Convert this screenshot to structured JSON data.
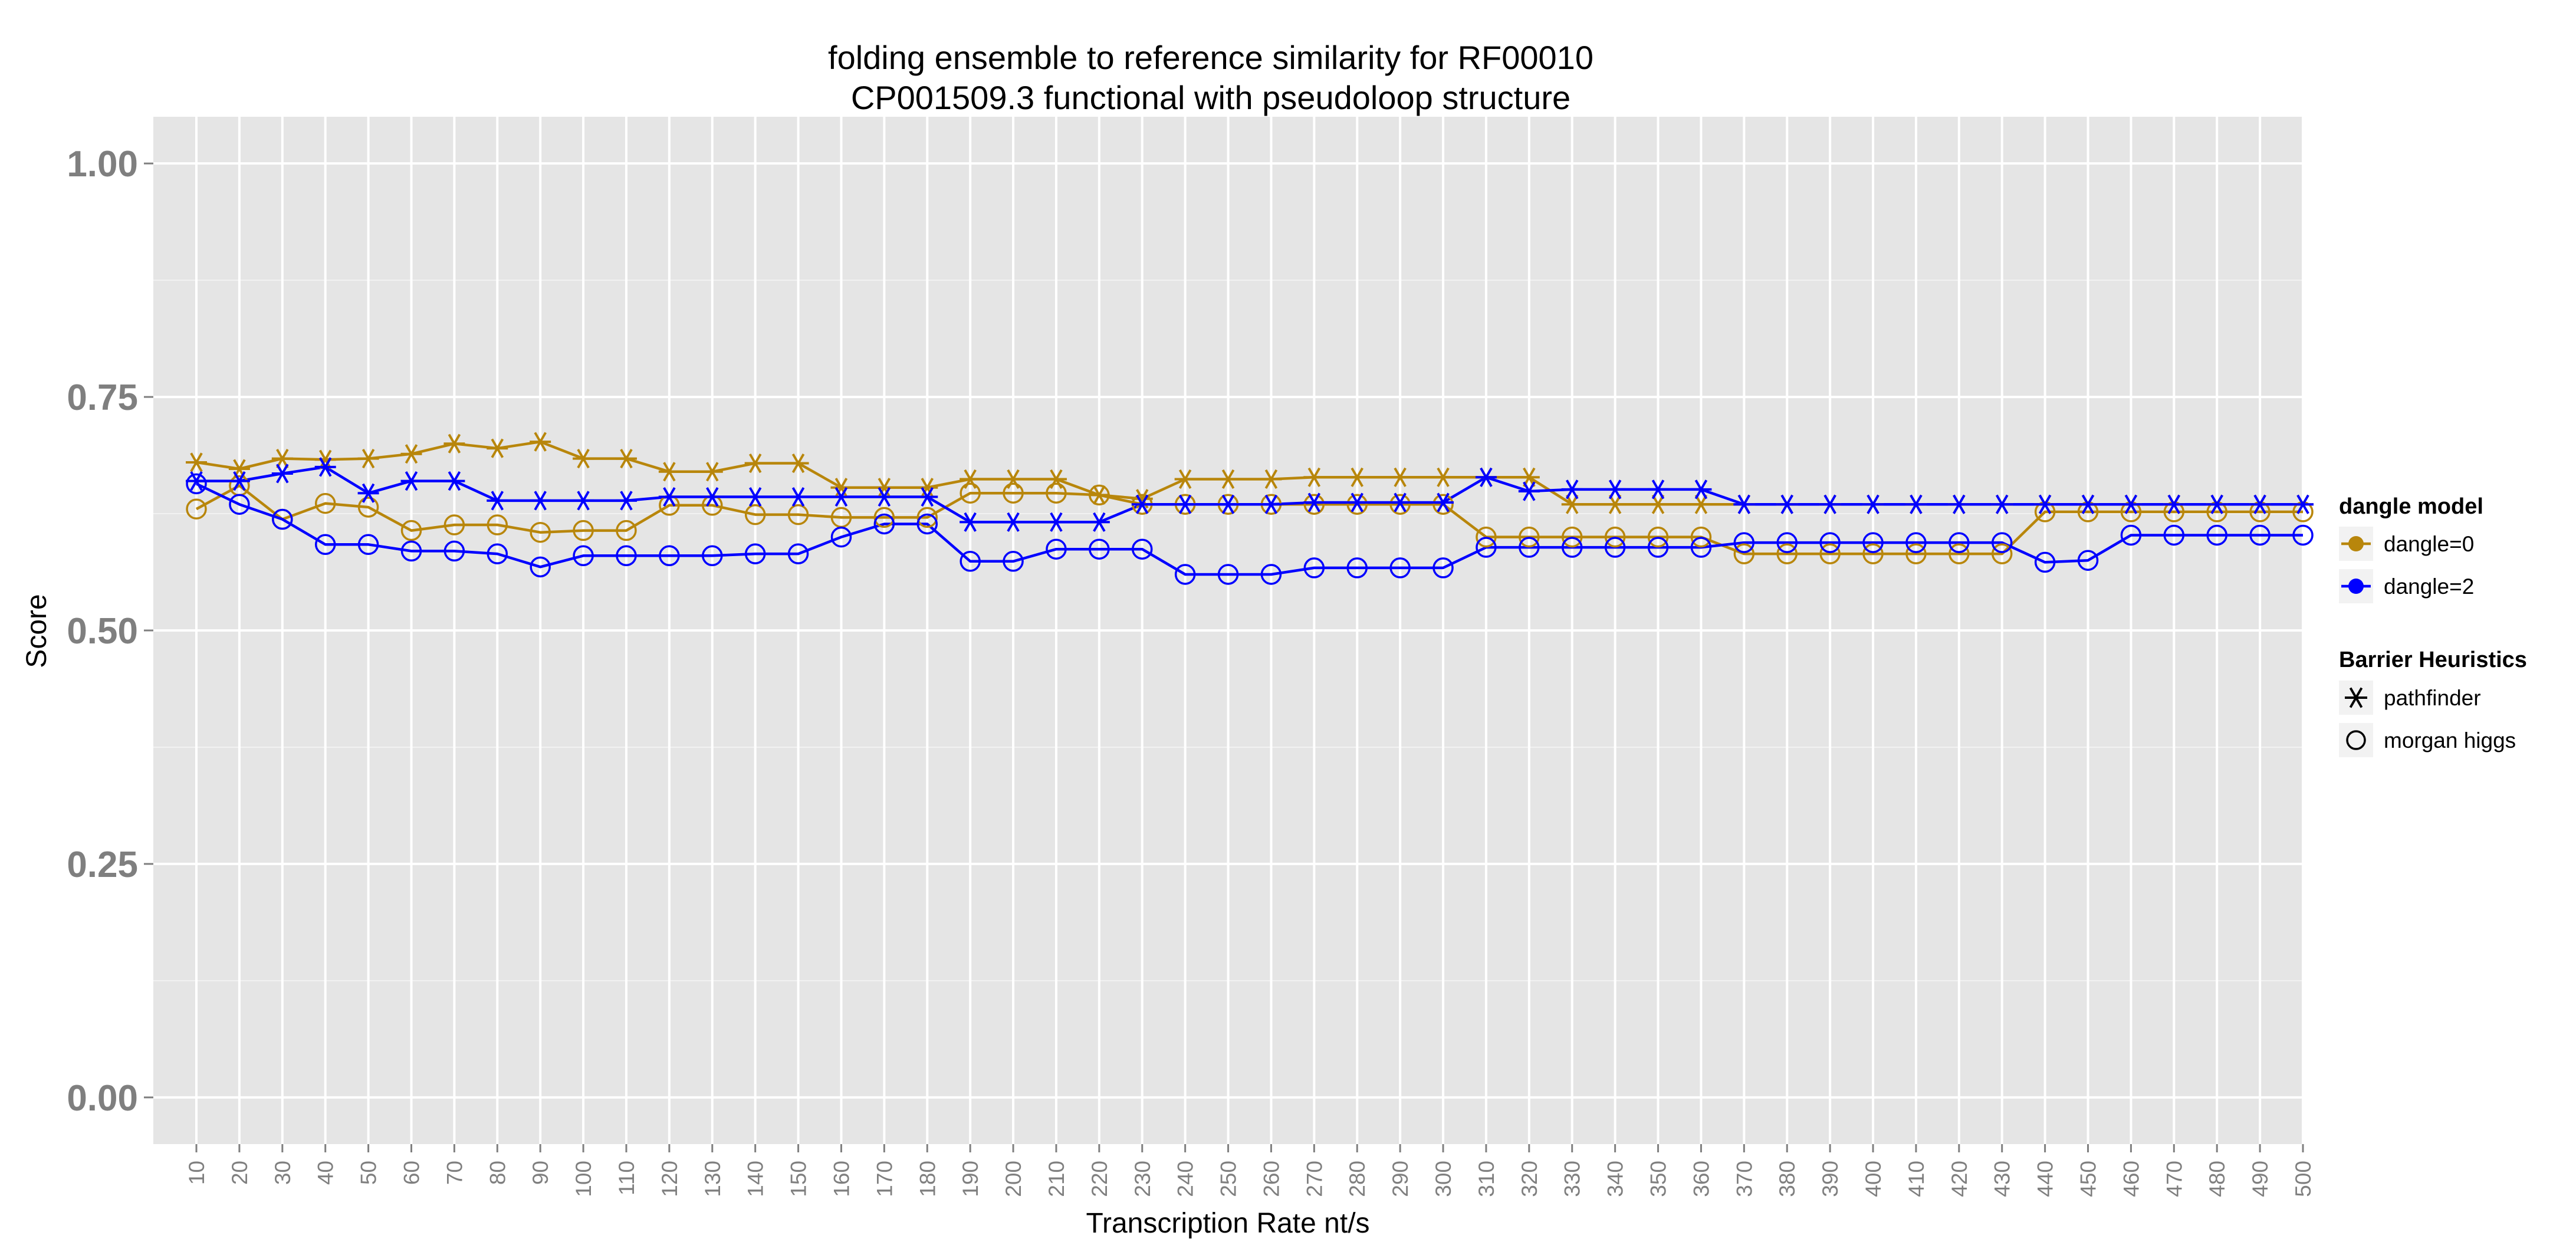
{
  "chart_data": {
    "type": "line",
    "title_line1": "folding ensemble to reference similarity for RF00010",
    "title_line2": "CP001509.3 functional with pseudoloop structure",
    "xlabel": "Transcription Rate nt/s",
    "ylabel": "Score",
    "ylim": [
      -0.05,
      1.05
    ],
    "y_ticks": [
      "0.00",
      "0.25",
      "0.50",
      "0.75",
      "1.00"
    ],
    "y_tick_values": [
      0,
      0.25,
      0.5,
      0.75,
      1.0
    ],
    "grid": true,
    "x": [
      10,
      20,
      30,
      40,
      50,
      60,
      70,
      80,
      90,
      100,
      110,
      120,
      130,
      140,
      150,
      160,
      170,
      180,
      190,
      200,
      210,
      220,
      230,
      240,
      250,
      260,
      270,
      280,
      290,
      300,
      310,
      320,
      330,
      340,
      350,
      360,
      370,
      380,
      390,
      400,
      410,
      420,
      430,
      440,
      450,
      460,
      470,
      480,
      490,
      500
    ],
    "x_tick_labels": [
      "10",
      "20",
      "30",
      "40",
      "50",
      "60",
      "70",
      "80",
      "90",
      "100",
      "110",
      "120",
      "130",
      "140",
      "150",
      "160",
      "170",
      "180",
      "190",
      "200",
      "210",
      "220",
      "230",
      "240",
      "250",
      "260",
      "270",
      "280",
      "290",
      "300",
      "310",
      "320",
      "330",
      "340",
      "350",
      "360",
      "370",
      "380",
      "390",
      "400",
      "410",
      "420",
      "430",
      "440",
      "450",
      "460",
      "470",
      "480",
      "490",
      "500"
    ],
    "legend": {
      "placement": "right",
      "color_title": "dangle model",
      "shape_title": "Barrier Heuristics",
      "color_items": [
        {
          "label": "dangle=0",
          "color": "#B8860B"
        },
        {
          "label": "dangle=2",
          "color": "#0000FF"
        }
      ],
      "shape_items": [
        {
          "label": "pathfinder",
          "shape": "asterisk"
        },
        {
          "label": "morgan higgs",
          "shape": "circle"
        }
      ]
    },
    "series": [
      {
        "dangle": "dangle=0",
        "heuristic": "pathfinder",
        "color": "#B8860B",
        "shape": "asterisk",
        "values": [
          0.68,
          0.673,
          0.684,
          0.683,
          0.684,
          0.689,
          0.7,
          0.695,
          0.702,
          0.684,
          0.684,
          0.67,
          0.67,
          0.679,
          0.679,
          0.653,
          0.653,
          0.653,
          0.662,
          0.662,
          0.662,
          0.645,
          0.641,
          0.662,
          0.662,
          0.662,
          0.664,
          0.664,
          0.664,
          0.664,
          0.664,
          0.664,
          0.635,
          0.635,
          0.635,
          0.635,
          0.635,
          0.635,
          0.635,
          0.635,
          0.635,
          0.635,
          0.635,
          0.635,
          0.635,
          0.635,
          0.635,
          0.635,
          0.635,
          0.635
        ]
      },
      {
        "dangle": "dangle=0",
        "heuristic": "morgan higgs",
        "color": "#B8860B",
        "shape": "circle",
        "values": [
          0.63,
          0.655,
          0.619,
          0.636,
          0.632,
          0.607,
          0.613,
          0.613,
          0.605,
          0.607,
          0.607,
          0.634,
          0.634,
          0.624,
          0.624,
          0.621,
          0.621,
          0.621,
          0.647,
          0.647,
          0.647,
          0.645,
          0.635,
          0.635,
          0.635,
          0.635,
          0.635,
          0.635,
          0.635,
          0.635,
          0.6,
          0.6,
          0.6,
          0.6,
          0.6,
          0.6,
          0.582,
          0.582,
          0.582,
          0.582,
          0.582,
          0.582,
          0.582,
          0.627,
          0.627,
          0.627,
          0.627,
          0.627,
          0.627,
          0.627
        ]
      },
      {
        "dangle": "dangle=2",
        "heuristic": "pathfinder",
        "color": "#0000FF",
        "shape": "asterisk",
        "values": [
          0.66,
          0.66,
          0.668,
          0.675,
          0.647,
          0.66,
          0.66,
          0.639,
          0.639,
          0.639,
          0.639,
          0.643,
          0.643,
          0.643,
          0.643,
          0.643,
          0.643,
          0.643,
          0.616,
          0.616,
          0.616,
          0.616,
          0.635,
          0.635,
          0.635,
          0.635,
          0.637,
          0.637,
          0.637,
          0.637,
          0.664,
          0.649,
          0.651,
          0.651,
          0.651,
          0.651,
          0.635,
          0.635,
          0.635,
          0.635,
          0.635,
          0.635,
          0.635,
          0.635,
          0.635,
          0.635,
          0.635,
          0.635,
          0.635,
          0.635
        ]
      },
      {
        "dangle": "dangle=2",
        "heuristic": "morgan higgs",
        "color": "#0000FF",
        "shape": "circle",
        "values": [
          0.657,
          0.635,
          0.619,
          0.592,
          0.592,
          0.585,
          0.585,
          0.582,
          0.568,
          0.58,
          0.58,
          0.58,
          0.58,
          0.582,
          0.582,
          0.6,
          0.614,
          0.614,
          0.574,
          0.574,
          0.587,
          0.587,
          0.587,
          0.56,
          0.56,
          0.56,
          0.567,
          0.567,
          0.567,
          0.567,
          0.589,
          0.589,
          0.589,
          0.589,
          0.589,
          0.589,
          0.594,
          0.594,
          0.594,
          0.594,
          0.594,
          0.594,
          0.594,
          0.573,
          0.575,
          0.602,
          0.602,
          0.602,
          0.602,
          0.602
        ]
      }
    ]
  }
}
